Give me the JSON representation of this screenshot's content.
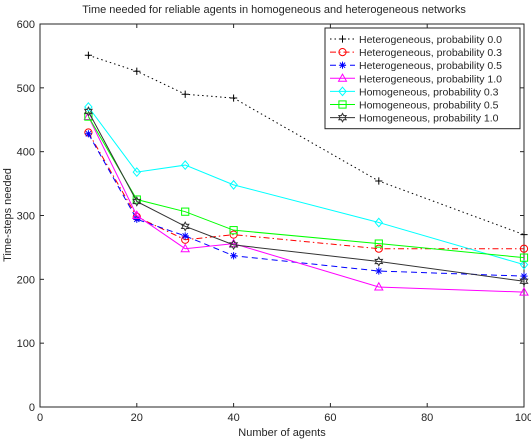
{
  "chart_data": {
    "type": "line",
    "title": "Time needed for reliable agents in homogeneous and heterogeneous networks",
    "xlabel": "Number of agents",
    "ylabel": "Time-steps needed",
    "xlim": [
      0,
      100
    ],
    "ylim": [
      0,
      600
    ],
    "xticks": [
      0,
      20,
      40,
      60,
      80,
      100
    ],
    "yticks": [
      0,
      100,
      200,
      300,
      400,
      500,
      600
    ],
    "x": [
      10,
      20,
      30,
      40,
      70,
      100
    ],
    "grid": false,
    "legend_position": "top-right",
    "series": [
      {
        "name": "Heterogeneous, probability 0.0",
        "values": [
          551,
          526,
          490,
          484,
          354,
          270
        ],
        "color": "#000000",
        "dash": "1.5,3",
        "marker": "plus"
      },
      {
        "name": "Heterogeneous, probability 0.3",
        "values": [
          430,
          298,
          262,
          270,
          248,
          248
        ],
        "color": "#ff0000",
        "dash": "6,3,1.5,3",
        "marker": "circle"
      },
      {
        "name": "Heterogeneous, probability 0.5",
        "values": [
          428,
          294,
          268,
          237,
          213,
          205
        ],
        "color": "#0000ff",
        "dash": "6,4",
        "marker": "asterisk"
      },
      {
        "name": "Heterogeneous, probability 1.0",
        "values": [
          455,
          300,
          248,
          256,
          188,
          180
        ],
        "color": "#ff00ff",
        "dash": "",
        "marker": "triangle"
      },
      {
        "name": "Homogeneous, probability 0.3",
        "values": [
          470,
          368,
          379,
          348,
          289,
          223
        ],
        "color": "#00ffff",
        "dash": "",
        "marker": "diamond"
      },
      {
        "name": "Homogeneous, probability 0.5",
        "values": [
          455,
          325,
          306,
          277,
          256,
          234
        ],
        "color": "#00ff00",
        "dash": "",
        "marker": "square"
      },
      {
        "name": "Homogeneous, probability 1.0",
        "values": [
          463,
          322,
          283,
          254,
          228,
          197
        ],
        "color": "#333333",
        "dash": "",
        "marker": "hexagram"
      }
    ]
  }
}
